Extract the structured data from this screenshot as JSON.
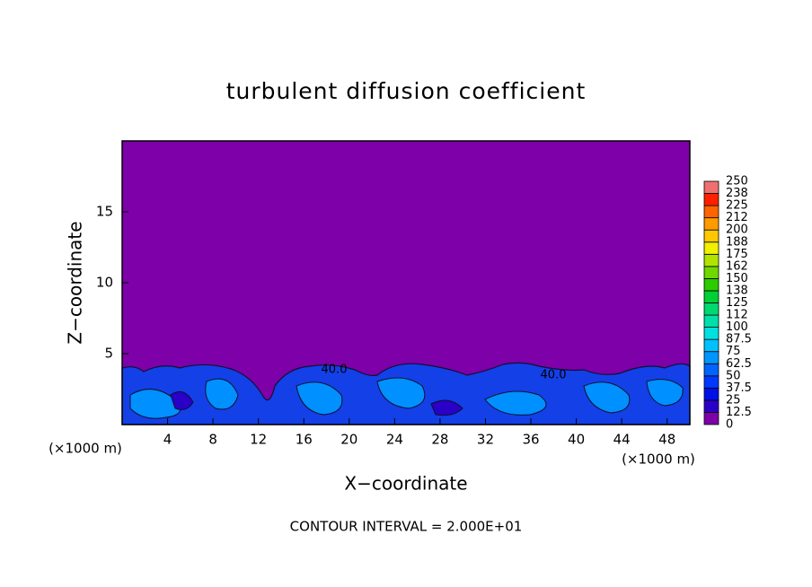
{
  "chart_data": {
    "type": "contour",
    "title": "turbulent diffusion coefficient",
    "x_label": "X−coordinate",
    "y_label": "Z−coordinate",
    "x_unit_left": "(×1000 m)",
    "x_unit_right": "(×1000 m)",
    "footer": "CONTOUR INTERVAL = 2.000E+01",
    "contour_labels": [
      "40.0",
      "40.0"
    ],
    "xlim": [
      0,
      50
    ],
    "xticks": [
      4,
      8,
      12,
      16,
      20,
      24,
      28,
      32,
      36,
      40,
      44,
      48
    ],
    "ylim": [
      0,
      20
    ],
    "yticks": [
      5,
      10,
      15
    ],
    "colorbar": {
      "levels": [
        0,
        12.5,
        25,
        37.5,
        50,
        62.5,
        75,
        87.5,
        100,
        {
          "value": 112.5,
          "label": "112"
        },
        125,
        {
          "value": 137.5,
          "label": "138"
        },
        150,
        {
          "value": 162.5,
          "label": "162"
        },
        175,
        {
          "value": 187.5,
          "label": "188"
        },
        200,
        {
          "value": 212.5,
          "label": "212"
        },
        225,
        {
          "value": 237.5,
          "label": "238"
        },
        250
      ],
      "colors": [
        "#7d00a8",
        "#2a00c8",
        "#0010e8",
        "#0038ff",
        "#0064ff",
        "#0096ff",
        "#00c0ff",
        "#00e0e0",
        "#00e0a8",
        "#00d870",
        "#00d038",
        "#2ccc00",
        "#70d800",
        "#b0e400",
        "#f0f000",
        "#ffc800",
        "#ff9a00",
        "#ff6400",
        "#ff2000",
        "#f07070"
      ]
    }
  }
}
